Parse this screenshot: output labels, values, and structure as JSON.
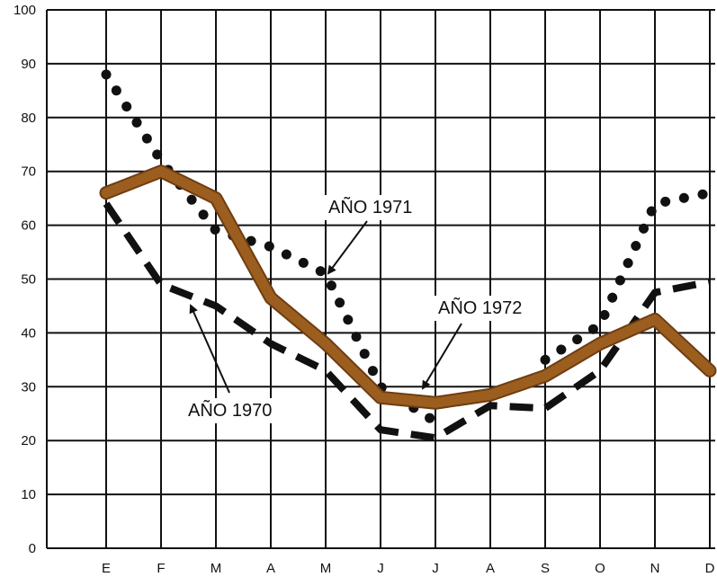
{
  "chart_data": {
    "type": "line",
    "title": "",
    "xlabel": "",
    "ylabel": "",
    "categories": [
      "E",
      "F",
      "M",
      "A",
      "M",
      "J",
      "J",
      "A",
      "S",
      "O",
      "N",
      "D"
    ],
    "ylim": [
      0,
      100
    ],
    "yticks": [
      0,
      10,
      20,
      30,
      40,
      50,
      60,
      70,
      80,
      90,
      100
    ],
    "grid": true,
    "series": [
      {
        "name": "AÑO 1970",
        "style": "dashed",
        "color": "#111111",
        "values": [
          64,
          49,
          45,
          38,
          33,
          22,
          20.5,
          26.5,
          26,
          33,
          47.5,
          49.5
        ]
      },
      {
        "name": "AÑO 1971",
        "style": "dotted",
        "color": "#111111",
        "values": [
          88,
          72,
          59,
          56,
          51,
          30,
          23.5,
          null,
          35,
          41.5,
          64,
          66
        ]
      },
      {
        "name": "AÑO 1972",
        "style": "solid",
        "color": "#9c5e1f",
        "values": [
          66,
          70,
          65,
          46.5,
          38,
          28,
          27,
          28.5,
          32,
          38,
          42.5,
          33
        ]
      }
    ],
    "annotations": [
      {
        "text": "AÑO 1971",
        "series": "AÑO 1971"
      },
      {
        "text": "AÑO 1972",
        "series": "AÑO 1972"
      },
      {
        "text": "AÑO 1970",
        "series": "AÑO 1970"
      }
    ]
  }
}
